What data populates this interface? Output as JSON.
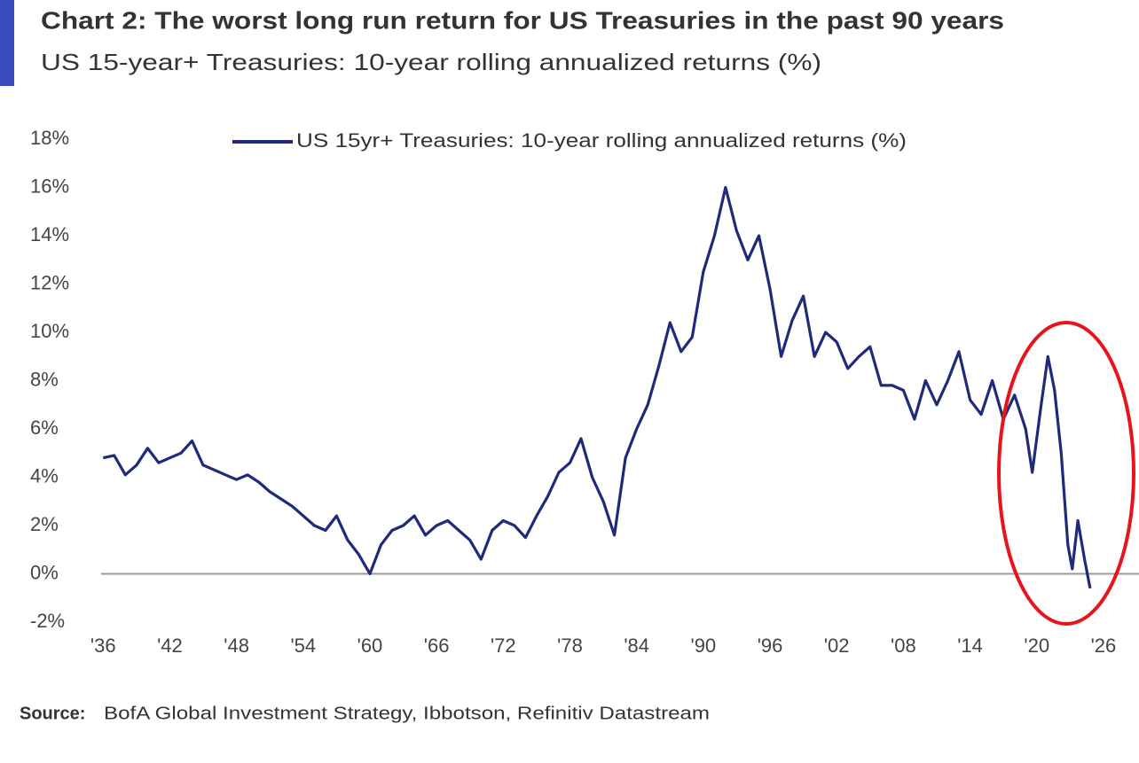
{
  "chart_data": {
    "type": "line",
    "title": "Chart 2: The worst long run return for US Treasuries in the past 90 years",
    "subtitle": "US 15-year+ Treasuries: 10-year rolling annualized returns (%)",
    "source_label": "Source:",
    "source": "BofA Global Investment Strategy, Ibbotson, Refinitiv Datastream",
    "x": [
      1936,
      1937,
      1938,
      1939,
      1940,
      1941,
      1942,
      1943,
      1944,
      1945,
      1946,
      1947,
      1948,
      1949,
      1950,
      1951,
      1952,
      1953,
      1954,
      1955,
      1956,
      1957,
      1958,
      1959,
      1960,
      1961,
      1962,
      1963,
      1964,
      1965,
      1966,
      1967,
      1968,
      1969,
      1970,
      1971,
      1972,
      1973,
      1974,
      1975,
      1976,
      1977,
      1978,
      1979,
      1980,
      1981,
      1982,
      1983,
      1984,
      1985,
      1986,
      1987,
      1988,
      1989,
      1990,
      1991,
      1992,
      1993,
      1994,
      1995,
      1996,
      1997,
      1998,
      1999,
      2000,
      2001,
      2002,
      2003,
      2004,
      2005,
      2006,
      2007,
      2008,
      2009,
      2010,
      2011,
      2012,
      2013,
      2014,
      2015,
      2016,
      2017,
      2018,
      2019,
      2019.6,
      2020.4,
      2021,
      2021.6,
      2022.2,
      2022.8,
      2023.2,
      2023.7,
      2024.3,
      2024.8
    ],
    "series": [
      {
        "name": "US 15yr+ Treasuries: 10-year rolling annualized returns (%)",
        "color": "#1f2a7a",
        "values": [
          4.8,
          4.9,
          4.1,
          4.5,
          5.2,
          4.6,
          4.8,
          5.0,
          5.5,
          4.5,
          4.3,
          4.1,
          3.9,
          4.1,
          3.8,
          3.4,
          3.1,
          2.8,
          2.4,
          2.0,
          1.8,
          2.4,
          1.4,
          0.8,
          0.0,
          1.2,
          1.8,
          2.0,
          2.4,
          1.6,
          2.0,
          2.2,
          1.8,
          1.4,
          0.6,
          1.8,
          2.2,
          2.0,
          1.5,
          2.4,
          3.2,
          4.2,
          4.6,
          5.6,
          4.0,
          3.0,
          1.6,
          4.8,
          6.0,
          7.0,
          8.6,
          10.4,
          9.2,
          9.8,
          12.5,
          14.0,
          16.0,
          14.2,
          13.0,
          14.0,
          11.8,
          9.0,
          10.5,
          11.5,
          9.0,
          10.0,
          9.6,
          8.5,
          9.0,
          9.4,
          7.8,
          7.8,
          7.6,
          6.4,
          8.0,
          7.0,
          8.0,
          9.2,
          7.2,
          6.6,
          8.0,
          6.4,
          7.4,
          6.0,
          4.2,
          7.0,
          9.0,
          7.6,
          5.0,
          1.2,
          0.2,
          2.2,
          0.6,
          -0.6
        ]
      }
    ],
    "xlim": [
      1935.5,
      2029.2
    ],
    "xticks": [
      {
        "value": 1936,
        "label": "'36"
      },
      {
        "value": 1942,
        "label": "'42"
      },
      {
        "value": 1948,
        "label": "'48"
      },
      {
        "value": 1954,
        "label": "'54"
      },
      {
        "value": 1960,
        "label": "'60"
      },
      {
        "value": 1966,
        "label": "'66"
      },
      {
        "value": 1972,
        "label": "'72"
      },
      {
        "value": 1978,
        "label": "'78"
      },
      {
        "value": 1984,
        "label": "'84"
      },
      {
        "value": 1990,
        "label": "'90"
      },
      {
        "value": 1996,
        "label": "'96"
      },
      {
        "value": 2002,
        "label": "'02"
      },
      {
        "value": 2008,
        "label": "'08"
      },
      {
        "value": 2014,
        "label": "'14"
      },
      {
        "value": 2020,
        "label": "'20"
      },
      {
        "value": 2026,
        "label": "'26"
      }
    ],
    "ylim": [
      -2,
      18
    ],
    "yticks": [
      {
        "value": -2,
        "label": "-2%"
      },
      {
        "value": 0,
        "label": "0%"
      },
      {
        "value": 2,
        "label": "2%"
      },
      {
        "value": 4,
        "label": "4%"
      },
      {
        "value": 6,
        "label": "6%"
      },
      {
        "value": 8,
        "label": "8%"
      },
      {
        "value": 10,
        "label": "10%"
      },
      {
        "value": 12,
        "label": "12%"
      },
      {
        "value": 14,
        "label": "14%"
      },
      {
        "value": 16,
        "label": "16%"
      },
      {
        "value": 18,
        "label": "18%"
      }
    ],
    "grid": false,
    "legend": "top"
  }
}
